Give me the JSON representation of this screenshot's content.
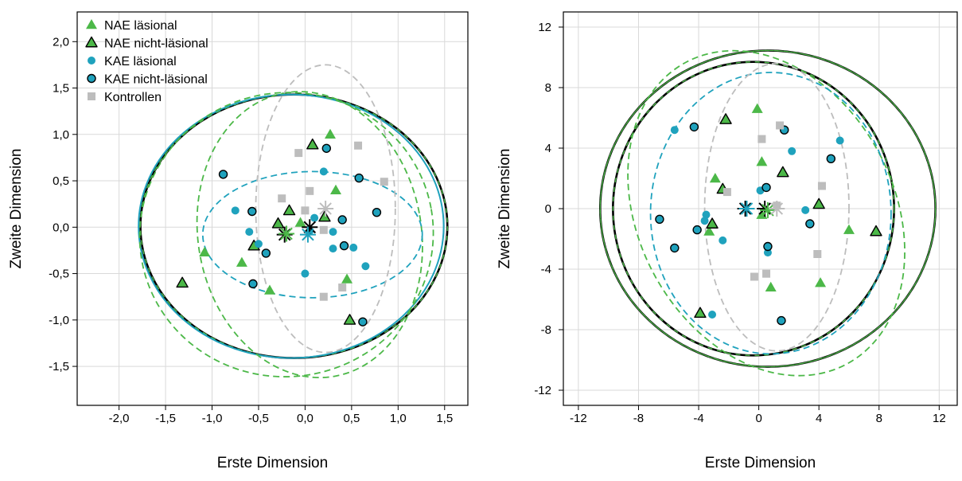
{
  "colors": {
    "nae": "#4cb848",
    "kae": "#1fa2bd",
    "kontrollen": "#bdbdbd",
    "grid": "#d9d9d9",
    "axis": "#000000"
  },
  "legend": {
    "placement": "top-left",
    "items": [
      {
        "label": "NAE läsional",
        "marker": "triangle",
        "fill": "#4cb848",
        "outlined": false
      },
      {
        "label": "NAE nicht-läsional",
        "marker": "triangle",
        "fill": "#4cb848",
        "outlined": true
      },
      {
        "label": "KAE läsional",
        "marker": "circle",
        "fill": "#1fa2bd",
        "outlined": false
      },
      {
        "label": "KAE nicht-läsional",
        "marker": "circle",
        "fill": "#1fa2bd",
        "outlined": true
      },
      {
        "label": "Kontrollen",
        "marker": "square",
        "fill": "#bdbdbd",
        "outlined": false
      }
    ]
  },
  "chart_data": [
    {
      "type": "scatter",
      "title": "",
      "xlabel": "Erste Dimension",
      "ylabel": "Zweite Dimension",
      "xlim": [
        -2.45,
        1.75
      ],
      "ylim": [
        -1.92,
        2.32
      ],
      "xticks": [
        -2.0,
        -1.5,
        -1.0,
        -0.5,
        0.0,
        0.5,
        1.0,
        1.5
      ],
      "xtick_labels": [
        "-2,0",
        "-1,5",
        "-1,0",
        "-0,5",
        "0,0",
        "0,5",
        "1,0",
        "1,5"
      ],
      "yticks": [
        -1.5,
        -1.0,
        -0.5,
        0.0,
        0.5,
        1.0,
        1.5,
        2.0
      ],
      "ytick_labels": [
        "-1,5",
        "-1,0",
        "-0,5",
        "0,0",
        "0,5",
        "1,0",
        "1,5",
        "2,0"
      ],
      "grid": true,
      "series": [
        {
          "name": "NAE läsional",
          "marker": "triangle",
          "outlined": false,
          "color": "#4cb848",
          "points": [
            [
              0.27,
              1.0
            ],
            [
              0.33,
              0.4
            ],
            [
              -0.05,
              0.05
            ],
            [
              -1.08,
              -0.27
            ],
            [
              -0.68,
              -0.38
            ],
            [
              -0.38,
              -0.68
            ],
            [
              0.45,
              -0.56
            ]
          ]
        },
        {
          "name": "NAE nicht-läsional",
          "marker": "triangle",
          "outlined": true,
          "color": "#4cb848",
          "points": [
            [
              -1.32,
              -0.6
            ],
            [
              0.08,
              0.89
            ],
            [
              -0.17,
              0.18
            ],
            [
              -0.29,
              0.04
            ],
            [
              -0.55,
              -0.2
            ],
            [
              0.21,
              0.11
            ],
            [
              0.48,
              -1.0
            ]
          ]
        },
        {
          "name": "KAE läsional",
          "marker": "circle",
          "outlined": false,
          "color": "#1fa2bd",
          "points": [
            [
              -0.75,
              0.18
            ],
            [
              0.2,
              0.6
            ],
            [
              0.05,
              -0.04
            ],
            [
              -0.6,
              -0.05
            ],
            [
              -0.5,
              -0.18
            ],
            [
              0.3,
              -0.05
            ],
            [
              0.3,
              -0.23
            ],
            [
              0.52,
              -0.22
            ],
            [
              0.65,
              -0.42
            ],
            [
              0.0,
              -0.5
            ],
            [
              0.1,
              0.1
            ]
          ]
        },
        {
          "name": "KAE nicht-läsional",
          "marker": "circle",
          "outlined": true,
          "color": "#1fa2bd",
          "points": [
            [
              -0.88,
              0.57
            ],
            [
              0.23,
              0.85
            ],
            [
              0.58,
              0.53
            ],
            [
              0.77,
              0.16
            ],
            [
              -0.57,
              0.17
            ],
            [
              0.4,
              0.08
            ],
            [
              0.42,
              -0.2
            ],
            [
              -0.42,
              -0.28
            ],
            [
              -0.56,
              -0.61
            ],
            [
              0.62,
              -1.02
            ]
          ]
        },
        {
          "name": "Kontrollen",
          "marker": "square",
          "outlined": false,
          "color": "#bdbdbd",
          "points": [
            [
              0.57,
              0.88
            ],
            [
              0.85,
              0.49
            ],
            [
              -0.07,
              0.8
            ],
            [
              0.05,
              0.39
            ],
            [
              -0.25,
              0.31
            ],
            [
              0.0,
              0.18
            ],
            [
              0.2,
              -0.03
            ],
            [
              0.4,
              -0.65
            ],
            [
              0.2,
              -0.75
            ]
          ]
        }
      ],
      "centroids": [
        {
          "x": -0.22,
          "y": -0.08,
          "color": "#000000"
        },
        {
          "x": -0.2,
          "y": -0.07,
          "color": "#4cb848"
        },
        {
          "x": 0.05,
          "y": 0.0,
          "color": "#000000"
        },
        {
          "x": 0.03,
          "y": -0.08,
          "color": "#1fa2bd"
        },
        {
          "x": 0.22,
          "y": 0.2,
          "color": "#bdbdbd"
        }
      ],
      "ellipses": [
        {
          "cx": -0.12,
          "cy": 0.01,
          "rx": 1.65,
          "ry": 1.42,
          "rot": 0,
          "color": "#000000",
          "style": "black-dashed"
        },
        {
          "cx": -0.15,
          "cy": 0.01,
          "rx": 1.64,
          "ry": 1.42,
          "rot": 0,
          "color": "#1fa2bd",
          "style": "solid"
        },
        {
          "cx": -0.2,
          "cy": -0.08,
          "rx": 1.58,
          "ry": 1.53,
          "rot": 10,
          "color": "#4cb848",
          "style": "dashed"
        },
        {
          "cx": 0.05,
          "cy": -0.08,
          "rx": 1.2,
          "ry": 1.55,
          "rot": 10,
          "color": "#4cb848",
          "style": "dashed"
        },
        {
          "cx": 0.08,
          "cy": -0.08,
          "rx": 1.18,
          "ry": 0.68,
          "rot": 0,
          "color": "#1fa2bd",
          "style": "dashed"
        },
        {
          "cx": 0.22,
          "cy": 0.2,
          "rx": 0.75,
          "ry": 1.55,
          "rot": 0,
          "color": "#bdbdbd",
          "style": "dashed"
        }
      ]
    },
    {
      "type": "scatter",
      "title": "",
      "xlabel": "Erste Dimension",
      "ylabel": "Zweite Dimension",
      "xlim": [
        -13.0,
        13.2
      ],
      "ylim": [
        -13.0,
        13.0
      ],
      "xticks": [
        -12,
        -8,
        -4,
        0,
        4,
        8,
        12
      ],
      "xtick_labels": [
        "-12",
        "-8",
        "-4",
        "0",
        "4",
        "8",
        "12"
      ],
      "yticks": [
        -12,
        -8,
        -4,
        0,
        4,
        8,
        12
      ],
      "ytick_labels": [
        "-12",
        "-8",
        "-4",
        "0",
        "4",
        "8",
        "12"
      ],
      "grid": true,
      "series": [
        {
          "name": "NAE läsional",
          "marker": "triangle",
          "outlined": false,
          "color": "#4cb848",
          "points": [
            [
              -0.1,
              6.6
            ],
            [
              0.2,
              3.1
            ],
            [
              -2.9,
              2.0
            ],
            [
              -3.3,
              -1.5
            ],
            [
              0.2,
              -0.4
            ],
            [
              6.0,
              -1.4
            ],
            [
              4.1,
              -4.9
            ],
            [
              0.8,
              -5.2
            ]
          ]
        },
        {
          "name": "NAE nicht-läsional",
          "marker": "triangle",
          "outlined": true,
          "color": "#4cb848",
          "points": [
            [
              -2.2,
              5.9
            ],
            [
              1.6,
              2.4
            ],
            [
              -2.4,
              1.3
            ],
            [
              4.0,
              0.3
            ],
            [
              -3.1,
              -1.0
            ],
            [
              7.8,
              -1.5
            ],
            [
              -3.9,
              -6.9
            ]
          ]
        },
        {
          "name": "KAE läsional",
          "marker": "circle",
          "outlined": false,
          "color": "#1fa2bd",
          "points": [
            [
              -5.6,
              5.2
            ],
            [
              2.2,
              3.8
            ],
            [
              5.4,
              4.5
            ],
            [
              0.1,
              1.2
            ],
            [
              3.1,
              -0.1
            ],
            [
              -3.6,
              -0.8
            ],
            [
              -3.5,
              -0.4
            ],
            [
              -2.4,
              -2.1
            ],
            [
              0.6,
              -2.9
            ],
            [
              -3.1,
              -7.0
            ]
          ]
        },
        {
          "name": "KAE nicht-läsional",
          "marker": "circle",
          "outlined": true,
          "color": "#1fa2bd",
          "points": [
            [
              -4.3,
              5.4
            ],
            [
              1.7,
              5.2
            ],
            [
              4.8,
              3.3
            ],
            [
              0.5,
              1.4
            ],
            [
              -6.6,
              -0.7
            ],
            [
              -4.1,
              -1.4
            ],
            [
              3.4,
              -1.0
            ],
            [
              -5.6,
              -2.6
            ],
            [
              0.6,
              -2.5
            ],
            [
              1.5,
              -7.4
            ]
          ]
        },
        {
          "name": "Kontrollen",
          "marker": "square",
          "outlined": false,
          "color": "#bdbdbd",
          "points": [
            [
              1.4,
              5.5
            ],
            [
              0.2,
              4.6
            ],
            [
              -2.1,
              1.1
            ],
            [
              4.2,
              1.5
            ],
            [
              1.2,
              0.2
            ],
            [
              3.9,
              -3.0
            ],
            [
              0.5,
              -4.3
            ],
            [
              -0.3,
              -4.5
            ]
          ]
        }
      ],
      "centroids": [
        {
          "x": -0.9,
          "y": 0.0,
          "color": "#000000"
        },
        {
          "x": -0.8,
          "y": 0.0,
          "color": "#1fa2bd"
        },
        {
          "x": 0.4,
          "y": 0.0,
          "color": "#000000"
        },
        {
          "x": 0.6,
          "y": -0.1,
          "color": "#4cb848"
        },
        {
          "x": 1.2,
          "y": 0.0,
          "color": "#bdbdbd"
        }
      ],
      "ellipses": [
        {
          "cx": -0.35,
          "cy": 0.0,
          "rx": 9.35,
          "ry": 9.7,
          "rot": 0,
          "color": "#1fa2bd",
          "style": "solid"
        },
        {
          "cx": -0.35,
          "cy": 0.0,
          "rx": 9.35,
          "ry": 9.7,
          "rot": 0,
          "color": "#000000",
          "style": "black-dashed"
        },
        {
          "cx": 0.6,
          "cy": 0.0,
          "rx": 11.15,
          "ry": 10.45,
          "rot": 0,
          "color": "#000000",
          "style": "black-dashed"
        },
        {
          "cx": 0.6,
          "cy": 0.0,
          "rx": 11.15,
          "ry": 10.45,
          "rot": 0,
          "color": "#4cb848",
          "style": "green-under"
        },
        {
          "cx": 0.5,
          "cy": -0.3,
          "rx": 8.5,
          "ry": 11.3,
          "rot": 28,
          "color": "#4cb848",
          "style": "dashed"
        },
        {
          "cx": 0.8,
          "cy": -0.3,
          "rx": 8.0,
          "ry": 9.3,
          "rot": 0,
          "color": "#1fa2bd",
          "style": "dashed"
        },
        {
          "cx": 1.2,
          "cy": 0.1,
          "rx": 4.8,
          "ry": 9.5,
          "rot": 0,
          "color": "#bdbdbd",
          "style": "dashed"
        }
      ]
    }
  ]
}
